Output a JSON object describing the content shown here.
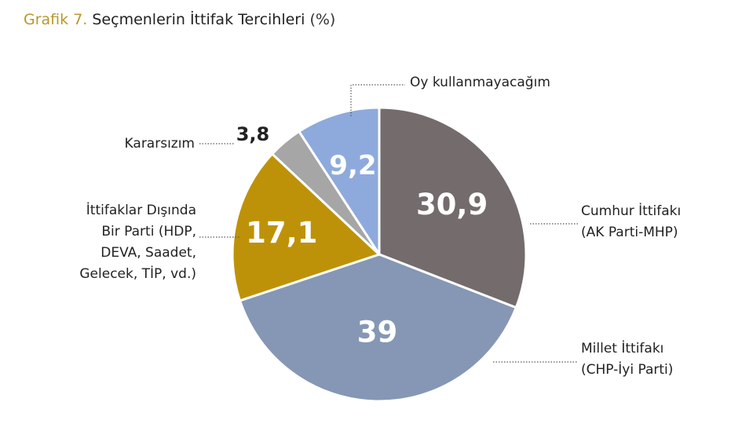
{
  "title": {
    "prefix": "Grafik 7.",
    "main": "Seçmenlerin İttifak Tercihleri",
    "unit": "(%)"
  },
  "chart_data": {
    "type": "pie",
    "title": "Seçmenlerin İttifak Tercihleri (%)",
    "slices": [
      {
        "label_lines": [
          "Cumhur İttifakı",
          "(AK Parti-MHP)"
        ],
        "value": 30.9,
        "value_text": "30,9",
        "color": "#746c6c"
      },
      {
        "label_lines": [
          "Millet İttifakı",
          "(CHP-İyi Parti)"
        ],
        "value": 39,
        "value_text": "39",
        "color": "#8597b4"
      },
      {
        "label_lines": [
          "İttifaklar Dışında",
          "Bir Parti (HDP,",
          "DEVA, Saadet,",
          "Gelecek, TİP, vd.)"
        ],
        "value": 17.1,
        "value_text": "17,1",
        "color": "#be9208"
      },
      {
        "label_lines": [
          "Kararsızım"
        ],
        "value": 3.8,
        "value_text": "3,8",
        "color": "#a6a6a6"
      },
      {
        "label_lines": [
          "Oy kullanmayacağım"
        ],
        "value": 9.2,
        "value_text": "9,2",
        "color": "#8eaadc"
      }
    ],
    "start": "12 o'clock",
    "direction": "clockwise",
    "legend": "none"
  }
}
